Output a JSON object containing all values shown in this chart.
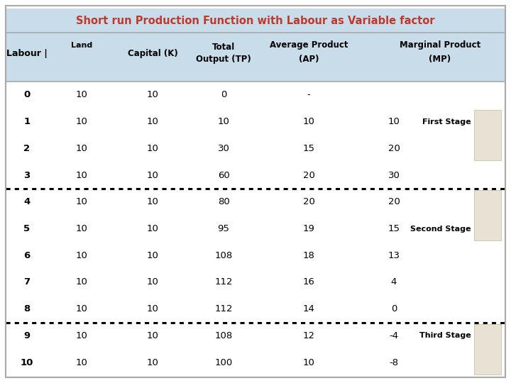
{
  "title": "Short run Production Function with Labour as Variable factor",
  "title_color": "#c0392b",
  "header_bg": "#c8dcea",
  "rows": [
    [
      "0",
      "10",
      "10",
      "0",
      "-",
      ""
    ],
    [
      "1",
      "10",
      "10",
      "10",
      "10",
      "10"
    ],
    [
      "2",
      "10",
      "10",
      "30",
      "15",
      "20"
    ],
    [
      "3",
      "10",
      "10",
      "60",
      "20",
      "30"
    ],
    [
      "4",
      "10",
      "10",
      "80",
      "20",
      "20"
    ],
    [
      "5",
      "10",
      "10",
      "95",
      "19",
      "15"
    ],
    [
      "6",
      "10",
      "10",
      "108",
      "18",
      "13"
    ],
    [
      "7",
      "10",
      "10",
      "112",
      "16",
      "4"
    ],
    [
      "8",
      "10",
      "10",
      "112",
      "14",
      "0"
    ],
    [
      "9",
      "10",
      "10",
      "108",
      "12",
      "-4"
    ],
    [
      "10",
      "10",
      "10",
      "100",
      "10",
      "-8"
    ]
  ],
  "dotted_after_row_indices": [
    3,
    8
  ],
  "stage_box_color": "#e8e2d5",
  "stage_box_border": "#ccccaa",
  "bg_color": "#ffffff"
}
